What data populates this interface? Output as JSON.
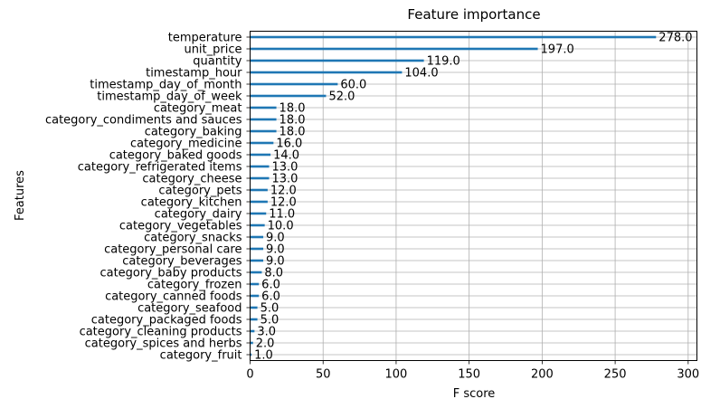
{
  "chart_data": {
    "type": "bar",
    "orientation": "horizontal",
    "title": "Feature importance",
    "xlabel": "F score",
    "ylabel": "Features",
    "xlim": [
      0,
      306
    ],
    "xticks": [
      0,
      50,
      100,
      150,
      200,
      250,
      300
    ],
    "grid": true,
    "bar_color": "#1f77b4",
    "categories": [
      "temperature",
      "unit_price",
      "quantity",
      "timestamp_hour",
      "timestamp_day_of_month",
      "timestamp_day_of_week",
      "category_meat",
      "category_condiments and sauces",
      "category_baking",
      "category_medicine",
      "category_baked goods",
      "category_refrigerated items",
      "category_cheese",
      "category_pets",
      "category_kitchen",
      "category_dairy",
      "category_vegetables",
      "category_snacks",
      "category_personal care",
      "category_beverages",
      "category_baby products",
      "category_frozen",
      "category_canned foods",
      "category_seafood",
      "category_packaged foods",
      "category_cleaning products",
      "category_spices and herbs",
      "category_fruit"
    ],
    "values": [
      278,
      197,
      119,
      104,
      60,
      52,
      18,
      18,
      18,
      16,
      14,
      13,
      13,
      12,
      12,
      11,
      10,
      9,
      9,
      9,
      8,
      6,
      6,
      5,
      5,
      3,
      2,
      1
    ],
    "value_labels": [
      "278.0",
      "197.0",
      "119.0",
      "104.0",
      "60.0",
      "52.0",
      "18.0",
      "18.0",
      "18.0",
      "16.0",
      "14.0",
      "13.0",
      "13.0",
      "12.0",
      "12.0",
      "11.0",
      "10.0",
      "9.0",
      "9.0",
      "9.0",
      "8.0",
      "6.0",
      "6.0",
      "5.0",
      "5.0",
      "3.0",
      "2.0",
      "1.0"
    ]
  }
}
